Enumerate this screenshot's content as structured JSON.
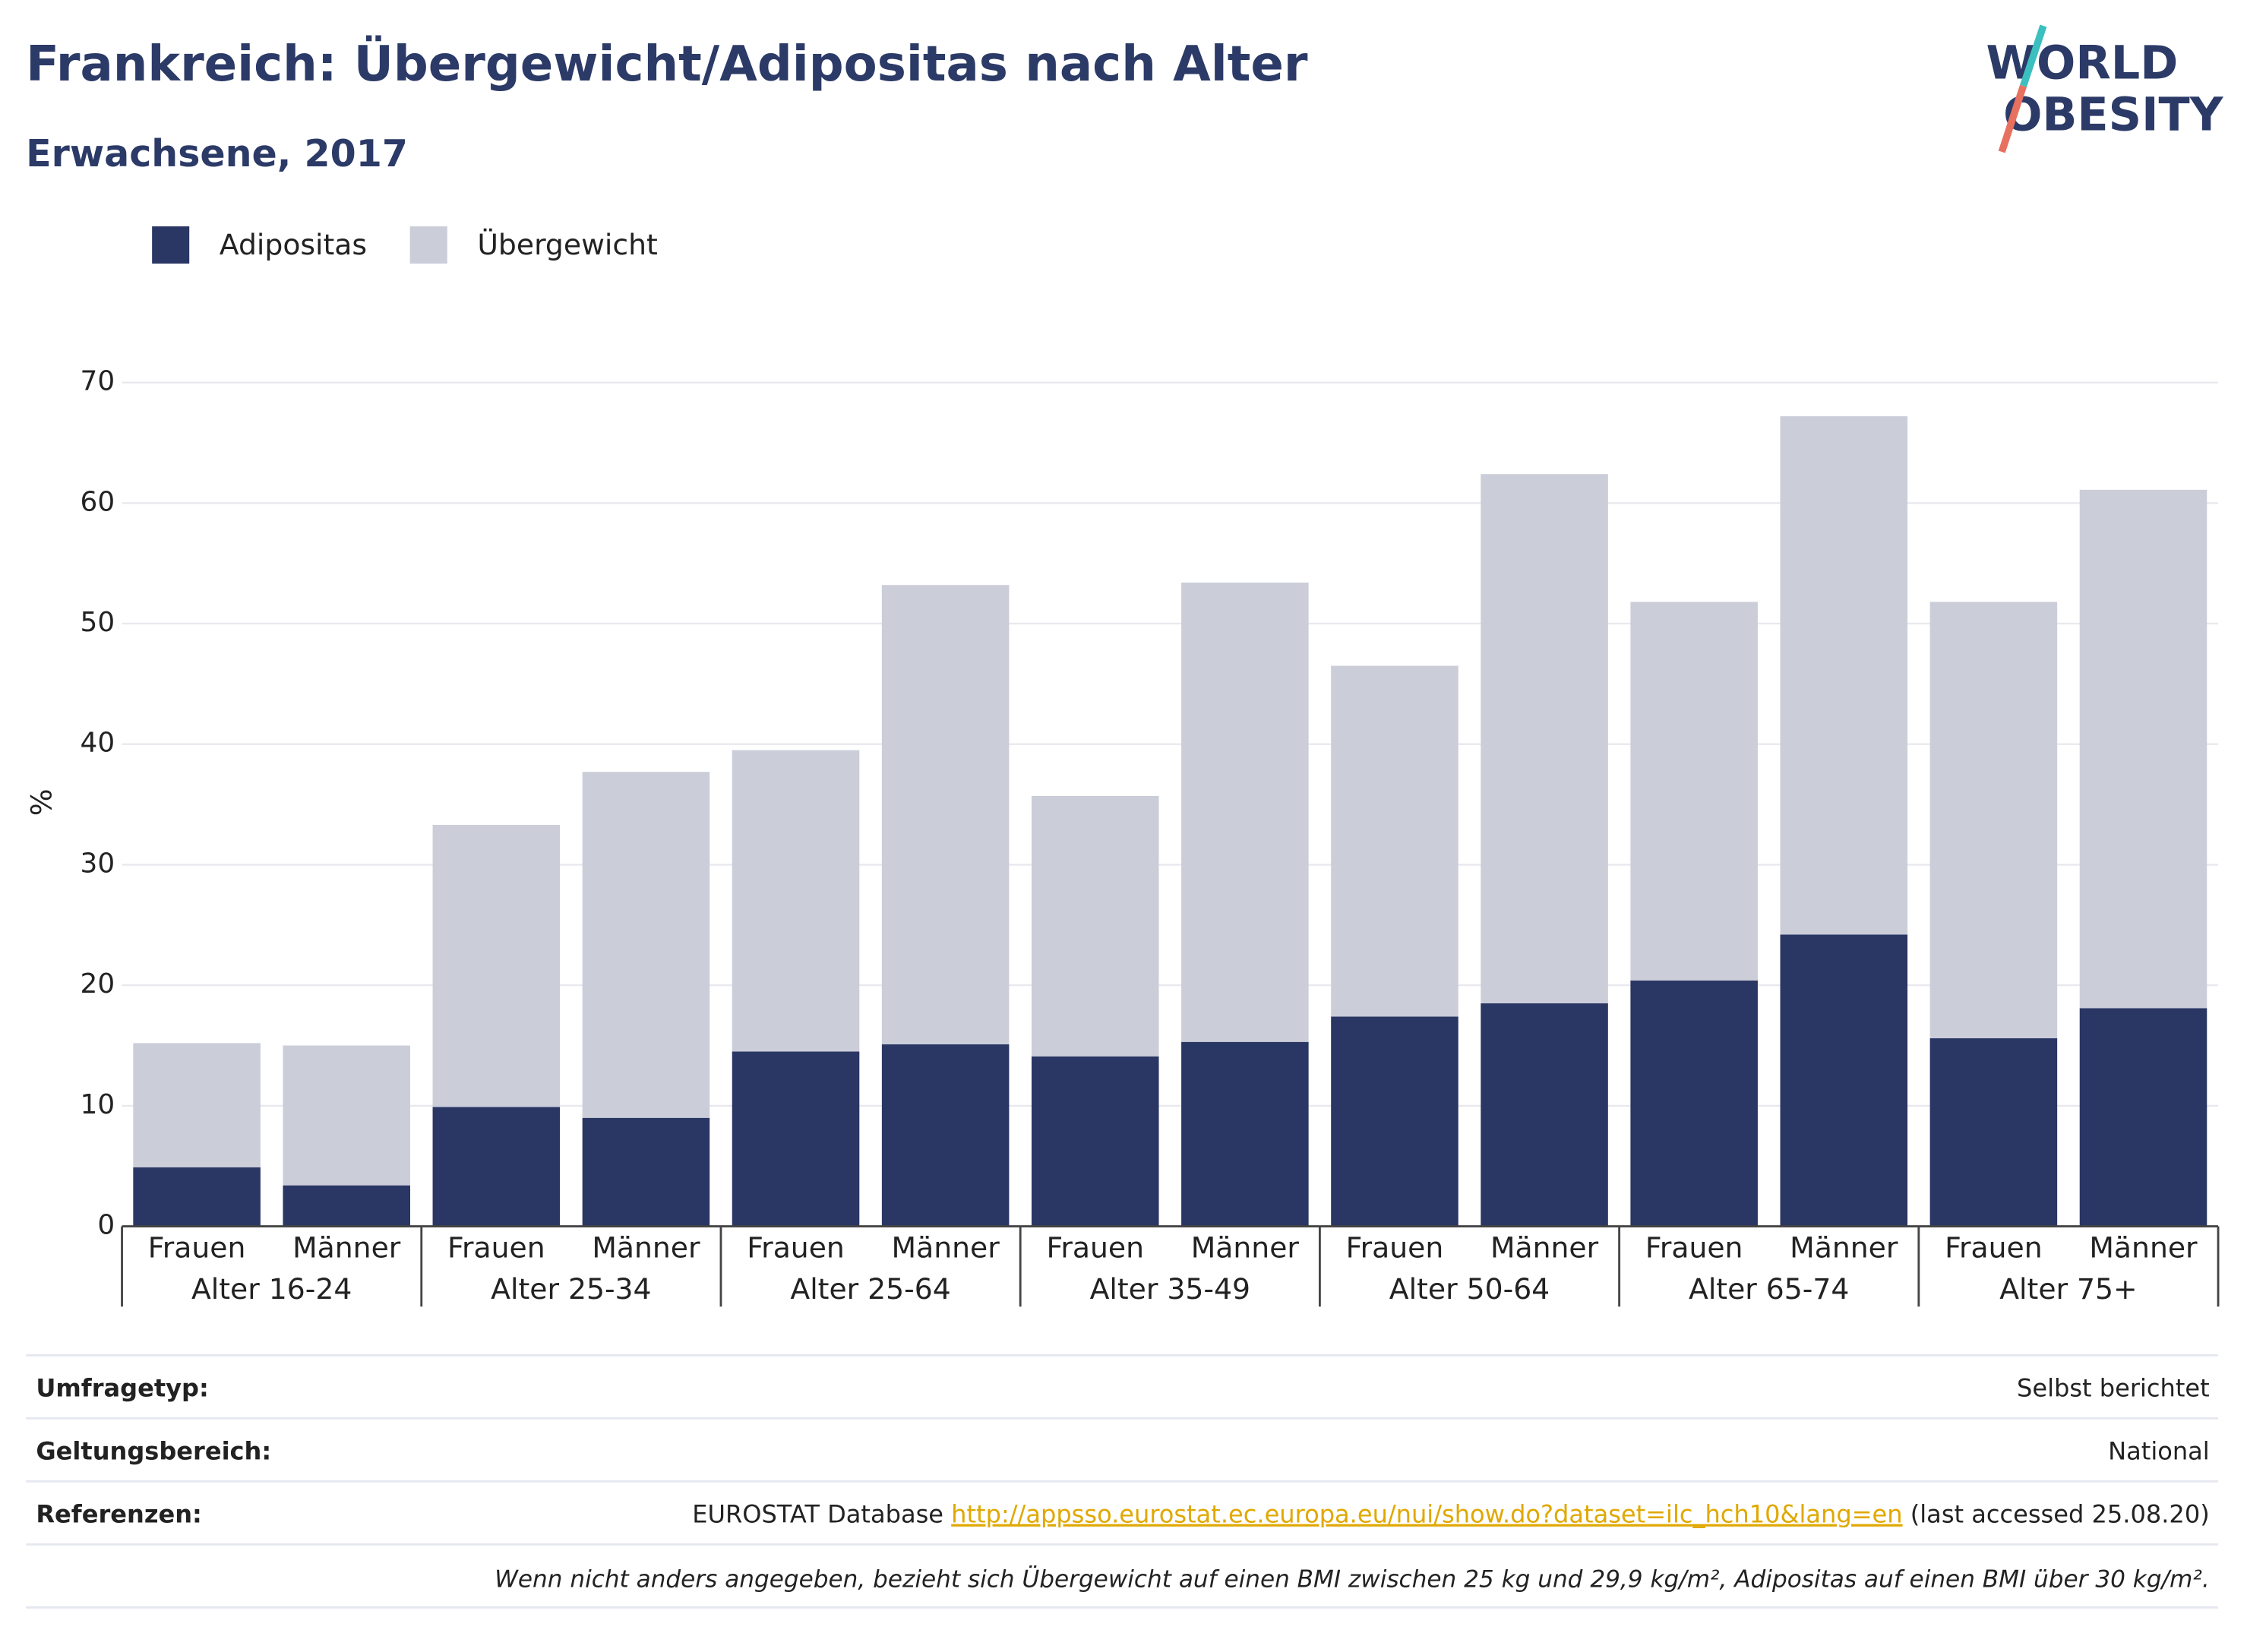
{
  "chart_data": {
    "type": "bar",
    "stacked": true,
    "title": "Frankreich: Übergewicht/Adipositas nach Alter",
    "subtitle": "Erwachsene, 2017",
    "y_label": "%",
    "categories": [
      "Frauen",
      "Männer",
      "Frauen",
      "Männer",
      "Frauen",
      "Männer",
      "Frauen",
      "Männer",
      "Frauen",
      "Männer",
      "Frauen",
      "Männer",
      "Frauen",
      "Männer"
    ],
    "groups": [
      "Alter 16-24",
      "Alter 25-34",
      "Alter 25-64",
      "Alter 35-49",
      "Alter 50-64",
      "Alter 65-74",
      "Alter 75+"
    ],
    "series": [
      {
        "name": "Adipositas",
        "color": "#2a3663",
        "values": [
          4.9,
          3.4,
          9.9,
          9.0,
          14.5,
          15.1,
          14.1,
          15.3,
          17.4,
          18.5,
          20.4,
          24.2,
          15.6,
          18.1
        ]
      },
      {
        "name": "Übergewicht",
        "color": "#cbcdd9",
        "values": [
          10.3,
          11.6,
          23.4,
          28.7,
          25.0,
          38.1,
          21.6,
          38.1,
          29.1,
          43.9,
          31.4,
          43.0,
          36.2,
          43.0
        ]
      }
    ],
    "ylim": [
      0,
      70
    ],
    "yticks": [
      0,
      10,
      20,
      30,
      40,
      50,
      60,
      70
    ],
    "grid": true
  },
  "logo": [
    "WORLD",
    "OBESITY"
  ],
  "footer": {
    "rows": [
      {
        "label": "Umfragetyp:",
        "value": "Selbst berichtet"
      },
      {
        "label": "Geltungsbereich:",
        "value": "National"
      }
    ],
    "reference": {
      "label": "Referenzen:",
      "text": "EUROSTAT Database ",
      "link": "http://appsso.eurostat.ec.europa.eu/nui/show.do?dataset=ilc_hch10&lang=en",
      "suffix": " (last accessed 25.08.20)"
    },
    "note": "Wenn nicht anders angegeben, bezieht sich Übergewicht auf einen BMI zwischen 25 kg und 29,9 kg/m², Adipositas auf einen BMI über 30 kg/m²."
  }
}
